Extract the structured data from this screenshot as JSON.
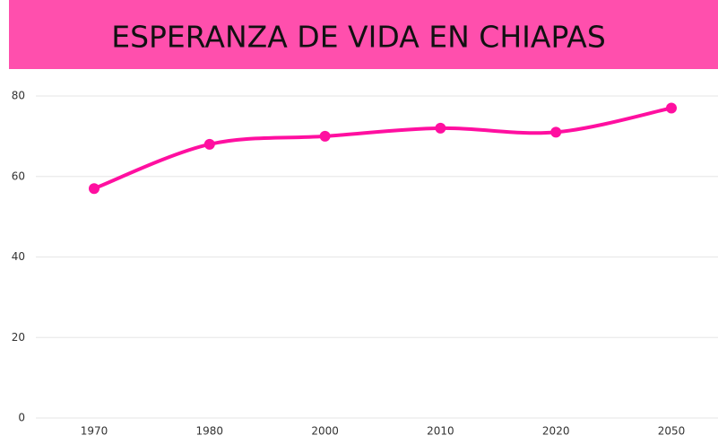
{
  "chart_data": {
    "type": "line",
    "title": "ESPERANZA DE VIDA EN CHIAPAS",
    "categories": [
      "1970",
      "1980",
      "2000",
      "2010",
      "2020",
      "2050"
    ],
    "series": [
      {
        "name": "Esperanza de vida",
        "color": "#ff0fa0",
        "values": [
          57,
          68,
          70,
          72,
          71,
          77
        ]
      }
    ],
    "ylim": [
      0,
      80
    ],
    "yticks": [
      0,
      20,
      40,
      60,
      80
    ],
    "grid": true,
    "smooth": true
  }
}
